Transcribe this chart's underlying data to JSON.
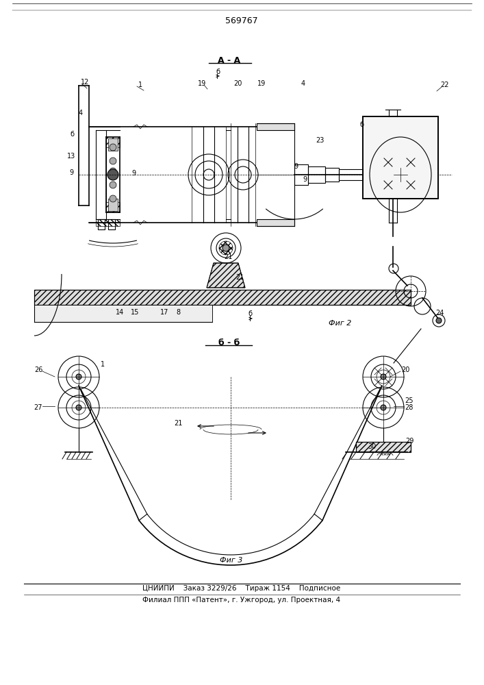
{
  "patent_number": "569767",
  "fig2_label": "Фиг 2",
  "fig3_label": "Фиг 3",
  "section_aa": "А - А",
  "section_bb": "б - б",
  "arrow_b_top": "б",
  "arrow_b_bot": "б",
  "footer_line1": "ЦНИИПИ    Заказ 3229/26    Тираж 1154    Подписное",
  "footer_line2": "Филиал ППП «Патент», г. Ужгород, ул. Проектная, 4",
  "bg_color": "#ffffff"
}
